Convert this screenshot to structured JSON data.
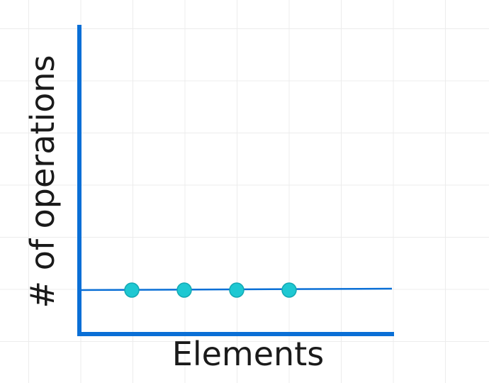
{
  "chart_data": {
    "type": "line",
    "xlabel": "Elements",
    "ylabel": "# of operations",
    "x": [
      1,
      2,
      3,
      4
    ],
    "y": [
      1,
      1,
      1,
      1
    ],
    "grid": true,
    "colors": {
      "axis": "#0a6fd6",
      "line": "#0a6fd6",
      "point_fill": "#1ec8d2",
      "point_stroke": "#13a8b3",
      "grid": "#ececec"
    }
  }
}
